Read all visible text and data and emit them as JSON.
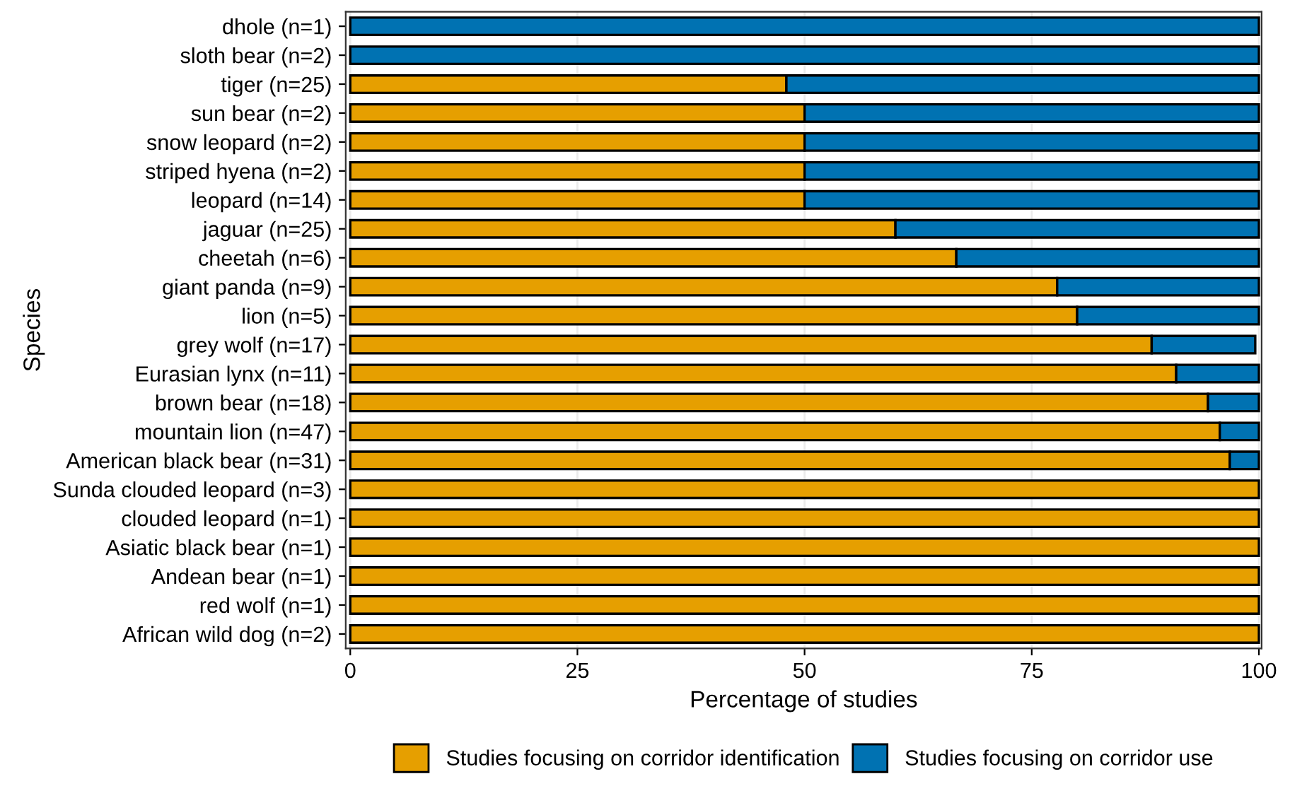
{
  "chart_data": {
    "type": "bar",
    "orientation": "horizontal",
    "stacked": true,
    "xlabel": "Percentage of studies",
    "ylabel": "Species",
    "categories": [
      "dhole (n=1)",
      "sloth bear (n=2)",
      "tiger (n=25)",
      "sun bear (n=2)",
      "snow leopard (n=2)",
      "striped hyena (n=2)",
      "leopard (n=14)",
      "jaguar (n=25)",
      "cheetah (n=6)",
      "giant panda (n=9)",
      "lion (n=5)",
      "grey wolf (n=17)",
      "Eurasian lynx (n=11)",
      "brown bear (n=18)",
      "mountain lion (n=47)",
      "American black bear (n=31)",
      "Sunda clouded leopard (n=3)",
      "clouded leopard (n=1)",
      "Asiatic black bear (n=1)",
      "Andean bear (n=1)",
      "red wolf (n=1)",
      "African wild dog (n=2)"
    ],
    "series": [
      {
        "name": "Studies focusing on corridor identification",
        "color": "#e69f00",
        "values": [
          0,
          0,
          48,
          50,
          50,
          50,
          50,
          60,
          66.7,
          77.8,
          80,
          88.2,
          90.9,
          94.4,
          95.7,
          96.8,
          100,
          100,
          100,
          100,
          100,
          100
        ]
      },
      {
        "name": "Studies focusing on corridor use",
        "color": "#0072b2",
        "values": [
          100,
          100,
          52,
          50,
          50,
          50,
          50,
          40,
          33.3,
          22.2,
          20,
          11.4,
          9.1,
          5.6,
          4.3,
          3.2,
          0,
          0,
          0,
          0,
          0,
          0
        ]
      }
    ],
    "xlim": [
      -0.5,
      100.3
    ],
    "xticks": [
      0,
      25,
      50,
      75,
      100
    ],
    "grid": "x",
    "legend": "bottom"
  }
}
